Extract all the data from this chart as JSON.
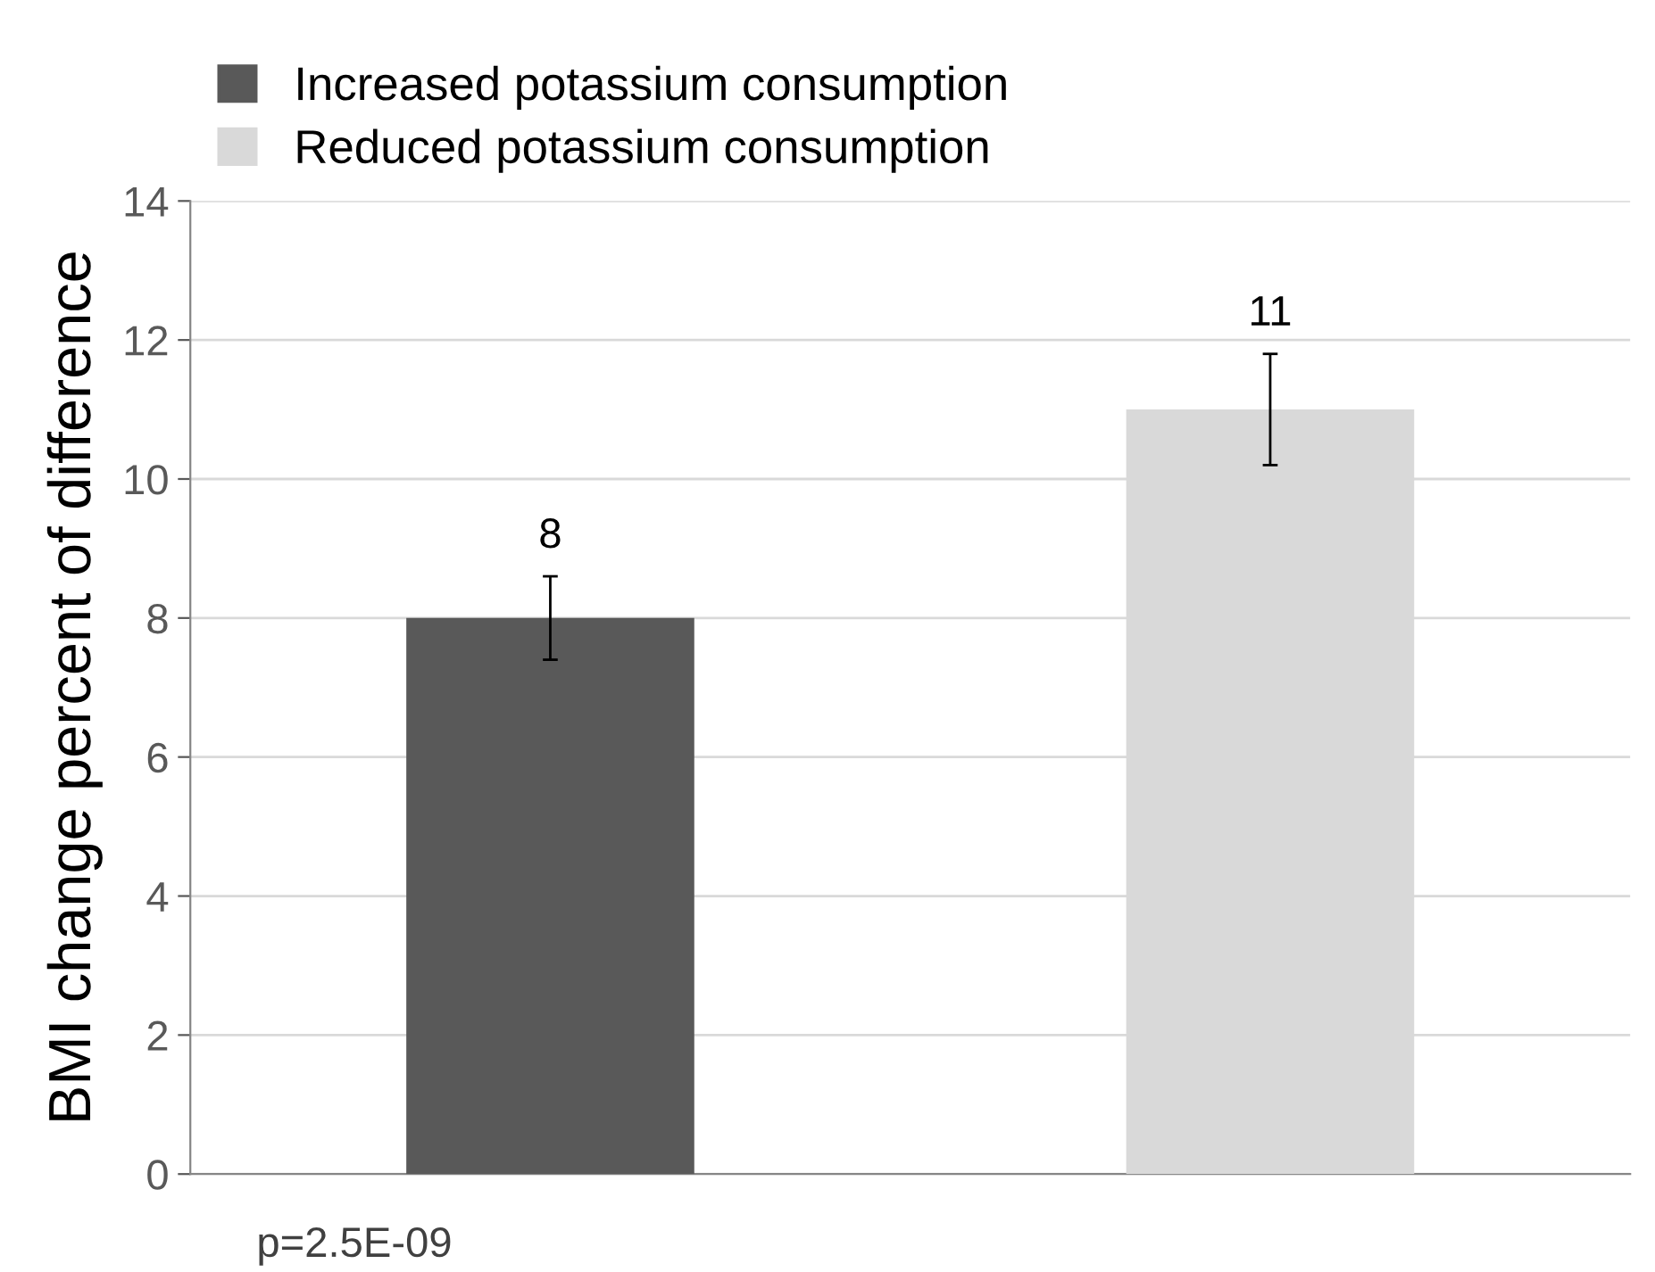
{
  "chart_data": {
    "type": "bar",
    "ylabel": "BMI change percent of difference",
    "categories": [
      null,
      null
    ],
    "series": [
      {
        "name": "Increased potassium consumption",
        "color": "#595959",
        "values": [
          8,
          null
        ],
        "errors": [
          0.6,
          null
        ]
      },
      {
        "name": "Reduced potassium consumption",
        "color": "#d9d9d9",
        "values": [
          null,
          11
        ],
        "errors": [
          null,
          0.8
        ]
      }
    ],
    "ylim": [
      0,
      14
    ],
    "yticks": [
      0,
      2,
      4,
      6,
      8,
      10,
      12,
      14
    ],
    "grid": "y",
    "legend": "top",
    "data_labels": true,
    "annotations": [
      "p=2.5E-09"
    ]
  }
}
